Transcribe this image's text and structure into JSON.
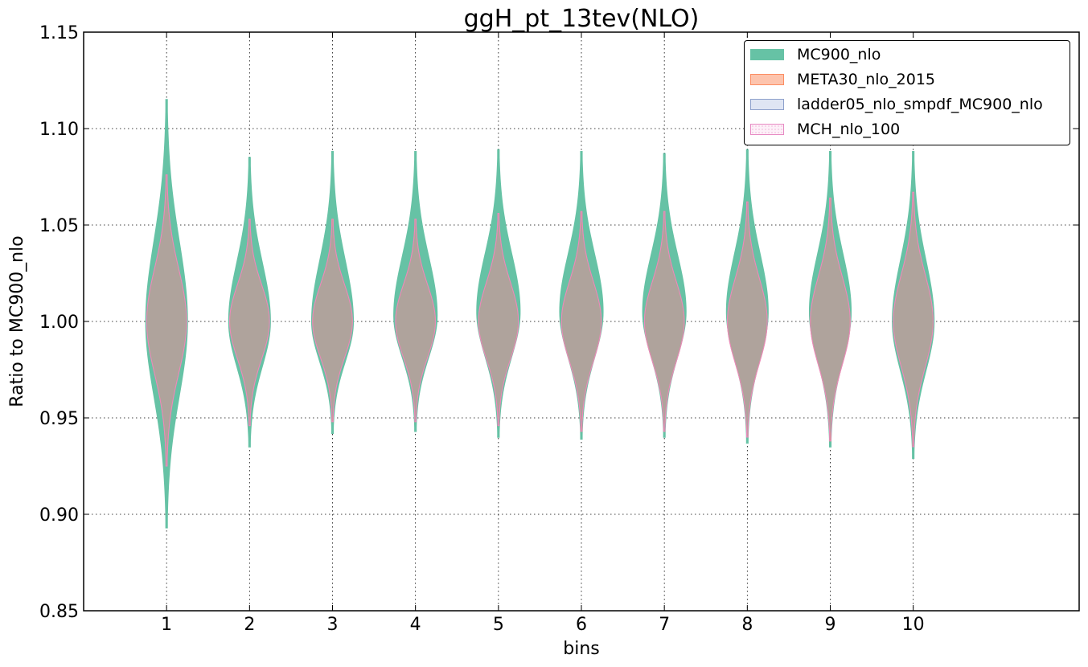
{
  "chart_data": {
    "type": "violin",
    "title": "ggH_pt_13tev(NLO)",
    "xlabel": "bins",
    "ylabel": "Ratio to MC900_nlo",
    "ylim": [
      0.85,
      1.15
    ],
    "xlim": [
      0,
      12
    ],
    "yticks": [
      "0.85",
      "0.90",
      "0.95",
      "1.00",
      "1.05",
      "1.10",
      "1.15"
    ],
    "categories": [
      "1",
      "2",
      "3",
      "4",
      "5",
      "6",
      "7",
      "8",
      "9",
      "10"
    ],
    "grid": true,
    "legend_position": "top-right",
    "series": [
      {
        "name": "MC900_nlo",
        "fill": "#66c2a5",
        "stroke": "#66c2a5",
        "bins": [
          {
            "min": 0.893,
            "max": 1.115,
            "width": 0.25,
            "center": 1.0
          },
          {
            "min": 0.935,
            "max": 1.085,
            "width": 0.25,
            "center": 1.0
          },
          {
            "min": 0.942,
            "max": 1.088,
            "width": 0.25,
            "center": 1.0
          },
          {
            "min": 0.943,
            "max": 1.088,
            "width": 0.26,
            "center": 1.003
          },
          {
            "min": 0.94,
            "max": 1.089,
            "width": 0.26,
            "center": 1.005
          },
          {
            "min": 0.939,
            "max": 1.088,
            "width": 0.26,
            "center": 1.005
          },
          {
            "min": 0.94,
            "max": 1.087,
            "width": 0.26,
            "center": 1.005
          },
          {
            "min": 0.937,
            "max": 1.089,
            "width": 0.25,
            "center": 1.005
          },
          {
            "min": 0.935,
            "max": 1.088,
            "width": 0.25,
            "center": 1.005
          },
          {
            "min": 0.929,
            "max": 1.088,
            "width": 0.25,
            "center": 1.0
          }
        ]
      },
      {
        "name": "META30_nlo_2015",
        "fill": "#fdc4ad",
        "stroke": "#fc8d62",
        "bins": [
          {
            "min": 0.925,
            "max": 1.076,
            "width": 0.24,
            "center": 1.0
          },
          {
            "min": 0.946,
            "max": 1.053,
            "width": 0.24,
            "center": 1.0
          },
          {
            "min": 0.948,
            "max": 1.053,
            "width": 0.24,
            "center": 1.0
          },
          {
            "min": 0.948,
            "max": 1.053,
            "width": 0.24,
            "center": 1.0
          },
          {
            "min": 0.946,
            "max": 1.056,
            "width": 0.24,
            "center": 1.0
          },
          {
            "min": 0.943,
            "max": 1.057,
            "width": 0.24,
            "center": 1.0
          },
          {
            "min": 0.943,
            "max": 1.057,
            "width": 0.24,
            "center": 1.0
          },
          {
            "min": 0.94,
            "max": 1.062,
            "width": 0.24,
            "center": 1.0
          },
          {
            "min": 0.938,
            "max": 1.064,
            "width": 0.24,
            "center": 1.0
          },
          {
            "min": 0.935,
            "max": 1.067,
            "width": 0.24,
            "center": 1.0
          }
        ]
      },
      {
        "name": "ladder05_nlo_smpdf_MC900_nlo",
        "fill": "#dfe5f3",
        "stroke": "#8da0cb",
        "bins": []
      },
      {
        "name": "MCH_nlo_100",
        "fill": "#fdf0f8",
        "stroke": "#e78ac3",
        "bins": [
          {
            "min": 0.925,
            "max": 1.076,
            "width": 0.24,
            "center": 1.0
          },
          {
            "min": 0.946,
            "max": 1.053,
            "width": 0.24,
            "center": 1.0
          },
          {
            "min": 0.948,
            "max": 1.053,
            "width": 0.24,
            "center": 1.0
          },
          {
            "min": 0.948,
            "max": 1.053,
            "width": 0.24,
            "center": 1.0
          },
          {
            "min": 0.946,
            "max": 1.056,
            "width": 0.24,
            "center": 1.0
          },
          {
            "min": 0.943,
            "max": 1.057,
            "width": 0.24,
            "center": 1.0
          },
          {
            "min": 0.943,
            "max": 1.057,
            "width": 0.24,
            "center": 1.0
          },
          {
            "min": 0.94,
            "max": 1.062,
            "width": 0.24,
            "center": 1.0
          },
          {
            "min": 0.938,
            "max": 1.064,
            "width": 0.24,
            "center": 1.0
          },
          {
            "min": 0.935,
            "max": 1.067,
            "width": 0.24,
            "center": 1.0
          }
        ]
      }
    ],
    "overlap_fill": "#afa39c"
  }
}
